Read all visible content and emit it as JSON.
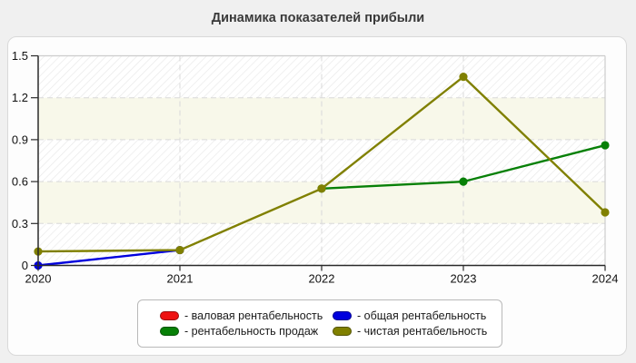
{
  "title": "Динамика показателей прибыли",
  "chart_data": {
    "type": "line",
    "title": "Динамика показателей прибыли",
    "x_categories": [
      "2020",
      "2021",
      "2022",
      "2023",
      "2024"
    ],
    "ylim": [
      0,
      1.5
    ],
    "ytick_labels": [
      "0",
      "0.3",
      "0.6",
      "0.9",
      "1.2",
      "1.5"
    ],
    "ytick_values": [
      0,
      0.3,
      0.6,
      0.9,
      1.2,
      1.5
    ],
    "grid": {
      "horizontal": "dashed",
      "vertical": "dashed",
      "color": "#d9d9d9"
    },
    "legend_position": "bottom-center",
    "plot_background": {
      "hatched_band_color": "#ffffff",
      "hatch_line_color": "#e8e8e8",
      "ivory_band_color": "#f8f8ea",
      "hatched_bands": [
        [
          0,
          0.3
        ],
        [
          0.6,
          0.9
        ],
        [
          1.2,
          1.5
        ]
      ],
      "ivory_bands": [
        [
          0.3,
          0.6
        ],
        [
          0.9,
          1.2
        ]
      ]
    },
    "axis_color": "#2a2a2a",
    "frame_color": "#cccccc",
    "series": [
      {
        "key": "gross-margin",
        "legend_label": "- валовая рентабельность",
        "color": "#ee1111",
        "values": [
          null,
          null,
          null,
          null,
          null
        ]
      },
      {
        "key": "total-margin",
        "legend_label": "- общая рентабельность",
        "color": "#0000dd",
        "values": [
          0,
          0.11,
          null,
          null,
          null
        ]
      },
      {
        "key": "sales-margin",
        "legend_label": "- рентабельность продаж",
        "color": "#078007",
        "values": [
          null,
          null,
          0.55,
          0.6,
          0.86
        ]
      },
      {
        "key": "net-margin",
        "legend_label": "- чистая рентабельность",
        "color": "#808000",
        "values": [
          0.1,
          0.11,
          0.55,
          1.35,
          0.38
        ]
      }
    ]
  }
}
